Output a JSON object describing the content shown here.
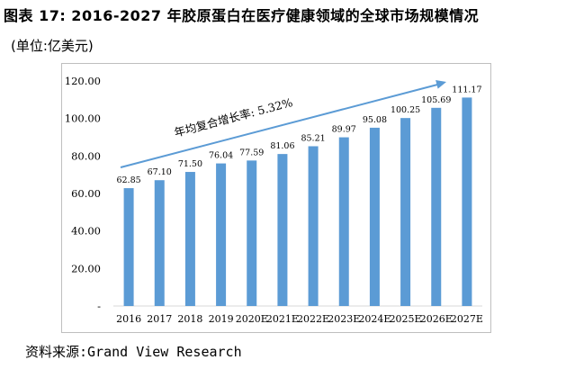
{
  "figure": {
    "title": "图表 17: 2016-2027 年胶原蛋白在医疗健康领域的全球市场规模情况",
    "unit": "(单位:亿美元)",
    "source": "资料来源:Grand View Research"
  },
  "chart_data": {
    "type": "bar",
    "categories": [
      "2016",
      "2017",
      "2018",
      "2019",
      "2020E",
      "2021E",
      "2022E",
      "2023E",
      "2024E",
      "2025E",
      "2026E",
      "2027E"
    ],
    "values": [
      62.85,
      67.1,
      71.5,
      76.04,
      77.59,
      81.06,
      85.21,
      89.97,
      95.08,
      100.25,
      105.69,
      111.17
    ],
    "value_labels": [
      "62.85",
      "67.10",
      "71.50",
      "76.04",
      "77.59",
      "81.06",
      "85.21",
      "89.97",
      "95.08",
      "100.25",
      "105.69",
      "111.17"
    ],
    "y_ticks": [
      "-",
      "20.00",
      "40.00",
      "60.00",
      "80.00",
      "100.00",
      "120.00"
    ],
    "ylim": [
      0,
      120
    ],
    "annotation": "年均复合增长率: 5.32%",
    "bar_color": "#5b9bd5",
    "arrow_color": "#5b9bd5",
    "grid": false
  }
}
